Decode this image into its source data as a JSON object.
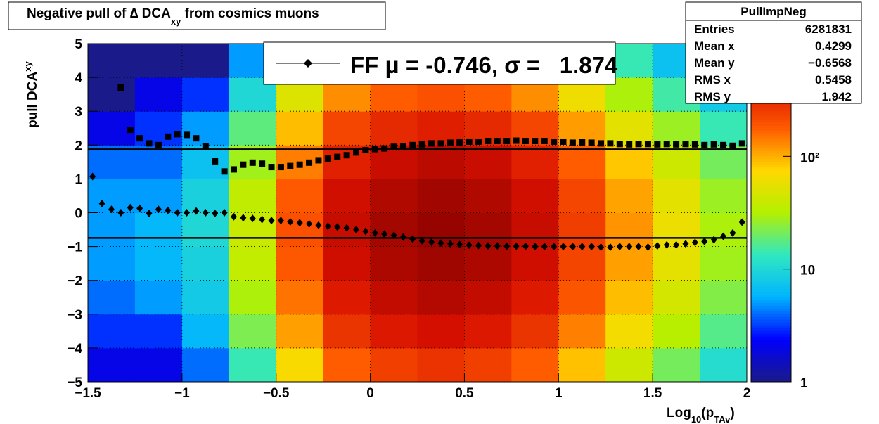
{
  "chart_data": {
    "type": "heatmap",
    "title": [
      "Negative pull of ∆ DCA",
      "xy",
      " from cosmics muons"
    ],
    "x_label": [
      "Log",
      "10",
      "(p",
      "TAv",
      ")"
    ],
    "y_label": [
      "pull DCA",
      "xy"
    ],
    "xlim": [
      -1.5,
      2
    ],
    "ylim": [
      -5,
      5
    ],
    "zlim": [
      1,
      1000
    ],
    "zlog": true,
    "grid": true,
    "xticks": [
      {
        "value": -1.5,
        "label": "−1.5"
      },
      {
        "value": -1,
        "label": "−1"
      },
      {
        "value": -0.5,
        "label": "−0.5"
      },
      0,
      0.5,
      1,
      1.5,
      2
    ],
    "yticks": [
      {
        "value": -5,
        "label": "−5"
      },
      {
        "value": -4,
        "label": "−4"
      },
      {
        "value": -3,
        "label": "−3"
      },
      {
        "value": -2,
        "label": "−2"
      },
      {
        "value": -1,
        "label": "−1"
      },
      0,
      1,
      2,
      3,
      4,
      5
    ],
    "zticks": [
      1,
      10,
      {
        "value": 100,
        "label": "10²"
      }
    ],
    "palette": [
      "#1a1a8a",
      "#0000ff",
      "#00b4ff",
      "#30e8c0",
      "#b4f000",
      "#ffd800",
      "#ff5a00",
      "#d81000",
      "#800000"
    ],
    "xbins": [
      -1.5,
      -1.25,
      -1,
      -0.75,
      -0.5,
      -0.25,
      0,
      0.25,
      0.5,
      0.75,
      1,
      1.25,
      1.5,
      1.75,
      2
    ],
    "ybins": [
      -5,
      -4,
      -3,
      -2,
      -1,
      0,
      1,
      2,
      3,
      4,
      5
    ],
    "z": [
      [
        2,
        2,
        4,
        14,
        70,
        175,
        245,
        280,
        245,
        175,
        88,
        42,
        21,
        11
      ],
      [
        3,
        3,
        6,
        22,
        110,
        275,
        385,
        440,
        385,
        275,
        138,
        66,
        33,
        17
      ],
      [
        4,
        5,
        8,
        30,
        150,
        375,
        525,
        600,
        525,
        375,
        188,
        90,
        45,
        23
      ],
      [
        5,
        6,
        9,
        37,
        184,
        460,
        644,
        736,
        644,
        460,
        230,
        110,
        55,
        28
      ],
      [
        5,
        6,
        10,
        40,
        200,
        500,
        700,
        800,
        700,
        500,
        250,
        120,
        60,
        30
      ],
      [
        5,
        5,
        9,
        36,
        180,
        450,
        630,
        720,
        630,
        450,
        225,
        108,
        54,
        27
      ],
      [
        4,
        4,
        7,
        28,
        140,
        350,
        490,
        560,
        490,
        350,
        175,
        84,
        42,
        21
      ],
      [
        2,
        3,
        5,
        18,
        90,
        225,
        315,
        360,
        315,
        225,
        113,
        54,
        27,
        14
      ],
      [
        1,
        2,
        3,
        10,
        50,
        125,
        175,
        200,
        175,
        125,
        63,
        30,
        15,
        8
      ],
      [
        1,
        1,
        1,
        5,
        24,
        60,
        84,
        96,
        84,
        60,
        30,
        14,
        7,
        4
      ]
    ],
    "x": [
      -1.475,
      -1.425,
      -1.375,
      -1.325,
      -1.275,
      -1.225,
      -1.175,
      -1.125,
      -1.075,
      -1.025,
      -0.975,
      -0.925,
      -0.875,
      -0.825,
      -0.775,
      -0.725,
      -0.675,
      -0.625,
      -0.575,
      -0.525,
      -0.475,
      -0.425,
      -0.375,
      -0.325,
      -0.275,
      -0.225,
      -0.175,
      -0.125,
      -0.075,
      -0.025,
      0.025,
      0.075,
      0.125,
      0.175,
      0.225,
      0.275,
      0.325,
      0.375,
      0.425,
      0.475,
      0.525,
      0.575,
      0.625,
      0.675,
      0.725,
      0.775,
      0.825,
      0.875,
      0.925,
      0.975,
      1.025,
      1.075,
      1.125,
      1.175,
      1.225,
      1.275,
      1.325,
      1.375,
      1.425,
      1.475,
      1.525,
      1.575,
      1.625,
      1.675,
      1.725,
      1.775,
      1.825,
      1.875,
      1.925,
      1.975
    ],
    "series": [
      {
        "marker": "square",
        "color": "#000000",
        "values": [
          null,
          null,
          null,
          3.7,
          2.45,
          2.2,
          2.05,
          2.0,
          2.25,
          2.32,
          2.3,
          2.2,
          1.97,
          1.52,
          1.22,
          1.28,
          1.42,
          1.48,
          1.45,
          1.35,
          1.35,
          1.38,
          1.42,
          1.48,
          1.55,
          1.6,
          1.65,
          1.7,
          1.78,
          1.85,
          1.88,
          1.9,
          1.95,
          1.97,
          2.0,
          2.02,
          2.05,
          2.05,
          2.07,
          2.08,
          2.1,
          2.1,
          2.12,
          2.12,
          2.12,
          2.13,
          2.12,
          2.12,
          2.12,
          2.1,
          2.1,
          2.07,
          2.08,
          2.07,
          2.05,
          2.05,
          2.03,
          2.02,
          2.03,
          2.03,
          2.02,
          2.03,
          2.02,
          2.03,
          2.02,
          2.0,
          2.02,
          2.0,
          1.98,
          2.05
        ]
      },
      {
        "marker": "diamond",
        "color": "#000000",
        "values": [
          1.07,
          0.27,
          0.1,
          0.0,
          0.15,
          0.13,
          -0.02,
          0.1,
          0.07,
          0.0,
          0.0,
          0.05,
          0.0,
          -0.02,
          0.0,
          -0.12,
          -0.15,
          -0.17,
          -0.2,
          -0.23,
          -0.23,
          -0.27,
          -0.3,
          -0.33,
          -0.37,
          -0.4,
          -0.42,
          -0.45,
          -0.5,
          -0.55,
          -0.6,
          -0.63,
          -0.67,
          -0.72,
          -0.78,
          -0.83,
          -0.87,
          -0.9,
          -0.92,
          -0.94,
          -0.96,
          -0.97,
          -0.98,
          -0.98,
          -0.99,
          -0.99,
          -0.99,
          -1.0,
          -1.0,
          -1.0,
          -1.0,
          -1.0,
          -1.0,
          -1.0,
          -1.02,
          -1.02,
          -1.0,
          -1.0,
          -1.0,
          -1.02,
          -0.98,
          -0.95,
          -0.95,
          -0.92,
          -0.88,
          -0.85,
          -0.8,
          -0.7,
          -0.6,
          -0.28
        ]
      }
    ],
    "fit": {
      "mu": -0.746,
      "sigma": 1.874
    },
    "legend_label": "FF μ = -0.746, σ =   1.874",
    "stats": {
      "name": "PullImpNeg",
      "rows": [
        [
          "Entries",
          "6281831"
        ],
        [
          "Mean x",
          "0.4299"
        ],
        [
          "Mean y",
          "−0.6568"
        ],
        [
          "RMS x",
          "0.5458"
        ],
        [
          "RMS y",
          "1.942"
        ]
      ]
    }
  }
}
